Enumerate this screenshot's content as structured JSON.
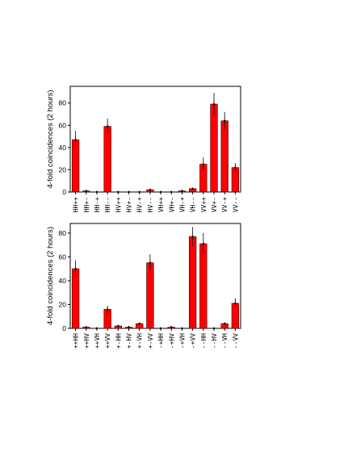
{
  "chart_data": [
    {
      "type": "bar",
      "ylabel": "4-fold coincidences (2 hours)",
      "ylim": [
        0,
        95
      ],
      "yticks": [
        0,
        20,
        40,
        60,
        80
      ],
      "bar_color": "#ff0000",
      "categories": [
        "HH++",
        "HH+-",
        "HH-+",
        "HH--",
        "HV++",
        "HV+-",
        "HV-+",
        "HV--",
        "VH++",
        "VH+-",
        "VH-+",
        "VH--",
        "VV++",
        "VV+-",
        "VV-+",
        "VV--"
      ],
      "values": [
        47,
        1,
        0,
        59,
        0,
        0,
        0,
        2,
        0,
        0,
        1,
        3,
        25,
        79,
        64,
        22
      ],
      "errors": [
        8,
        1,
        1,
        7,
        1,
        1,
        1,
        1,
        1,
        1,
        1,
        1,
        6,
        10,
        8,
        4
      ]
    },
    {
      "type": "bar",
      "ylabel": "4-fold coincidences (2 hours)",
      "ylim": [
        0,
        88
      ],
      "yticks": [
        0,
        20,
        40,
        60,
        80
      ],
      "bar_color": "#ff0000",
      "categories": [
        "++HH",
        "++HV",
        "++VH",
        "++VV",
        "+-HH",
        "+-HV",
        "+-VH",
        "+-VV",
        "-+HH",
        "-+HV",
        "-+VH",
        "-+VV",
        "--HH",
        "--HV",
        "--VH",
        "--VV"
      ],
      "values": [
        50,
        1,
        0,
        16,
        2,
        1,
        4,
        55,
        0,
        1,
        0,
        77,
        71,
        0,
        4,
        21
      ],
      "errors": [
        7,
        1,
        1,
        3,
        1,
        1,
        1,
        7,
        1,
        1,
        1,
        8,
        9,
        1,
        1,
        4
      ]
    }
  ]
}
